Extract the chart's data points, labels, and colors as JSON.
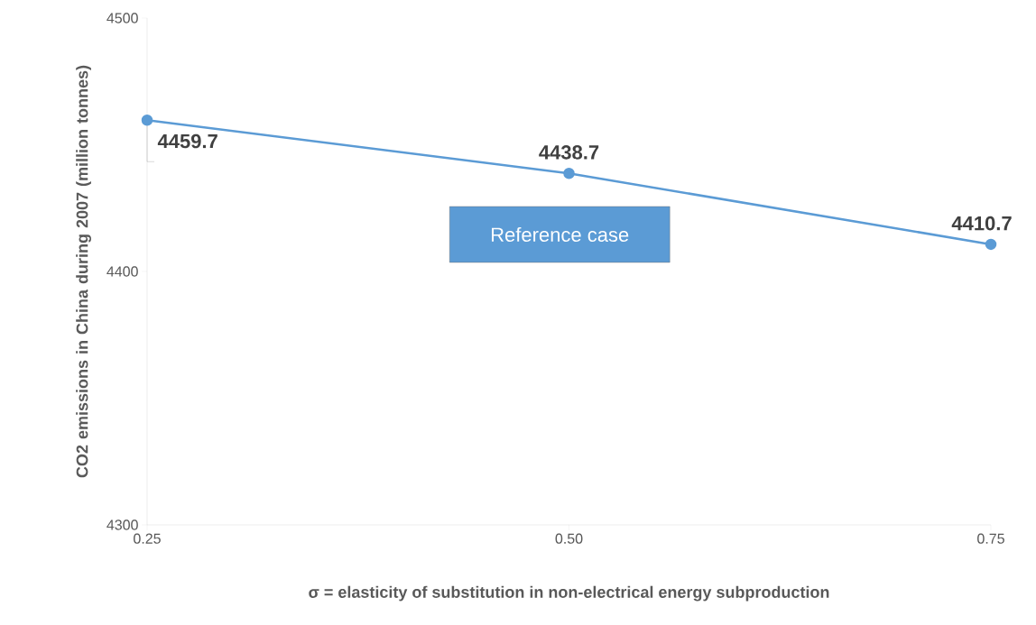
{
  "chart_data": {
    "type": "line",
    "xlabel": "σ = elasticity of substitution in non-electrical energy subproduction",
    "ylabel": "CO2 emissions in China during 2007 (million tonnes)",
    "categories": [
      "0.25",
      "0.50",
      "0.75"
    ],
    "values": [
      4459.7,
      4438.7,
      4410.7
    ],
    "color": "#5b9bd5",
    "marker": "circle",
    "line_style": "solid",
    "data_labels": true,
    "ylim": [
      4300,
      4500
    ],
    "yticks": [
      4300,
      4400,
      4500
    ],
    "annotations": [
      "Reference case"
    ]
  }
}
